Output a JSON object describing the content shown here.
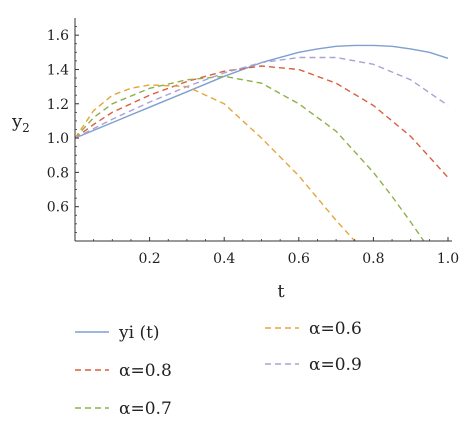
{
  "chart_data": {
    "type": "line",
    "title": "",
    "xlabel": "t",
    "ylabel": "y",
    "ylabel_subscript": "2",
    "xlim": [
      0,
      1.0
    ],
    "ylim": [
      0.4,
      1.7
    ],
    "x_ticks": [
      0.2,
      0.4,
      0.6,
      0.8,
      1.0
    ],
    "x_tick_labels": [
      "0.2",
      "0.4",
      "0.6",
      "0.8",
      "1.0"
    ],
    "y_ticks": [
      0.6,
      0.8,
      1.0,
      1.2,
      1.4,
      1.6
    ],
    "y_tick_labels": [
      "0.6",
      "0.8",
      "1.0",
      "1.2",
      "1.4",
      "1.6"
    ],
    "grid": false,
    "legend_position": "bottom",
    "series": [
      {
        "name": "yi (t)",
        "color": "#7f9fd0",
        "dashed": false,
        "x": [
          0,
          0.1,
          0.2,
          0.3,
          0.4,
          0.5,
          0.6,
          0.65,
          0.7,
          0.75,
          0.8,
          0.85,
          0.9,
          0.95,
          1.0
        ],
        "y": [
          1.0,
          1.09,
          1.18,
          1.27,
          1.36,
          1.44,
          1.5,
          1.52,
          1.535,
          1.54,
          1.54,
          1.535,
          1.52,
          1.5,
          1.465
        ]
      },
      {
        "name": "α=0.8",
        "color": "#d95f3b",
        "dashed": true,
        "x": [
          0,
          0.05,
          0.1,
          0.2,
          0.3,
          0.4,
          0.5,
          0.6,
          0.7,
          0.8,
          0.9,
          1.0
        ],
        "y": [
          1.0,
          1.08,
          1.15,
          1.25,
          1.33,
          1.39,
          1.42,
          1.4,
          1.32,
          1.19,
          1.01,
          0.77
        ]
      },
      {
        "name": "α=0.7",
        "color": "#8cb04a",
        "dashed": true,
        "x": [
          0,
          0.05,
          0.1,
          0.2,
          0.3,
          0.4,
          0.5,
          0.6,
          0.7,
          0.8,
          0.85,
          0.9,
          0.935
        ],
        "y": [
          1.0,
          1.12,
          1.2,
          1.29,
          1.34,
          1.36,
          1.32,
          1.2,
          1.04,
          0.8,
          0.66,
          0.51,
          0.4
        ]
      },
      {
        "name": "α=0.6",
        "color": "#e3a63b",
        "dashed": true,
        "x": [
          0,
          0.05,
          0.1,
          0.15,
          0.2,
          0.3,
          0.4,
          0.5,
          0.6,
          0.7,
          0.75
        ],
        "y": [
          1.0,
          1.16,
          1.25,
          1.29,
          1.31,
          1.3,
          1.2,
          1.0,
          0.78,
          0.52,
          0.4
        ]
      },
      {
        "name": "α=0.9",
        "color": "#a8a2d8",
        "dashed": true,
        "x": [
          0,
          0.1,
          0.2,
          0.3,
          0.4,
          0.5,
          0.6,
          0.7,
          0.8,
          0.9,
          1.0
        ],
        "y": [
          1.0,
          1.11,
          1.21,
          1.3,
          1.38,
          1.44,
          1.47,
          1.47,
          1.43,
          1.34,
          1.19
        ]
      }
    ],
    "legend_order": [
      0,
      1,
      2,
      3,
      4
    ]
  }
}
